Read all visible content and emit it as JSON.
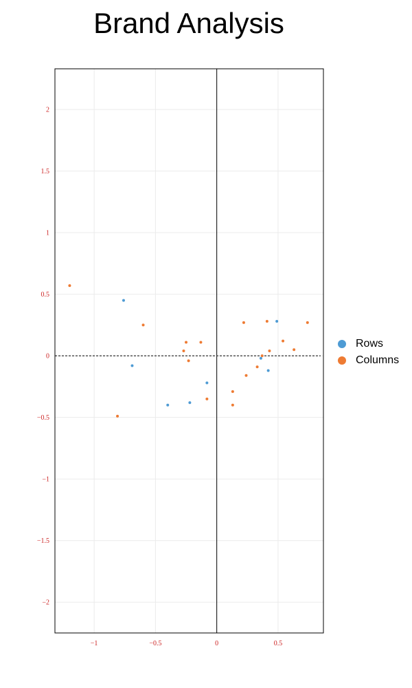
{
  "chart_data": {
    "type": "scatter",
    "title": "Brand Analysis",
    "xlabel": "",
    "ylabel": "",
    "xlim": [
      -1.32,
      0.87
    ],
    "ylim": [
      -2.25,
      2.33
    ],
    "x_ticks": [
      -1,
      -0.5,
      0,
      0.5
    ],
    "x_tick_labels": [
      "−1",
      "−0.5",
      "0",
      "0.5"
    ],
    "y_ticks": [
      2,
      1.5,
      1,
      0.5,
      0,
      -0.5,
      -1,
      -1.5,
      -2
    ],
    "y_tick_labels": [
      "2",
      "1.5",
      "1",
      "0.5",
      "0",
      "−0.5",
      "−1",
      "−1.5",
      "−2"
    ],
    "grid": true,
    "legend_position": "right",
    "tick_label_color": "#cc2222",
    "series": [
      {
        "name": "Rows",
        "color": "#4e9bd4",
        "points": [
          [
            -0.76,
            0.45
          ],
          [
            -0.69,
            -0.08
          ],
          [
            -0.4,
            -0.4
          ],
          [
            -0.22,
            -0.38
          ],
          [
            -0.08,
            -0.22
          ],
          [
            0.36,
            -0.02
          ],
          [
            0.42,
            -0.12
          ],
          [
            0.49,
            0.28
          ]
        ]
      },
      {
        "name": "Columns",
        "color": "#ee7b33",
        "points": [
          [
            -1.2,
            0.57
          ],
          [
            -0.81,
            -0.49
          ],
          [
            -0.6,
            0.25
          ],
          [
            -0.25,
            0.11
          ],
          [
            -0.13,
            0.11
          ],
          [
            -0.27,
            0.04
          ],
          [
            -0.23,
            -0.04
          ],
          [
            -0.08,
            -0.35
          ],
          [
            0.22,
            0.27
          ],
          [
            0.41,
            0.28
          ],
          [
            0.74,
            0.27
          ],
          [
            0.54,
            0.12
          ],
          [
            0.63,
            0.05
          ],
          [
            0.43,
            0.04
          ],
          [
            0.37,
            0.0
          ],
          [
            0.33,
            -0.09
          ],
          [
            0.24,
            -0.16
          ],
          [
            0.13,
            -0.29
          ],
          [
            0.13,
            -0.4
          ]
        ]
      }
    ]
  }
}
